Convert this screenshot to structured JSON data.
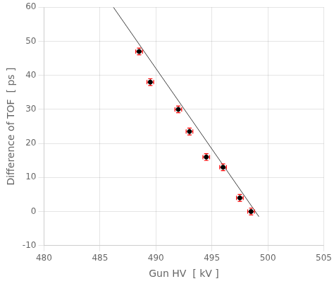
{
  "chart_data": {
    "type": "scatter",
    "xlabel": "Gun HV  [ kV ]",
    "ylabel": "Difference of TOF  [ ps ]",
    "xlim": [
      480,
      505
    ],
    "ylim": [
      -10,
      60
    ],
    "xticks": [
      480,
      485,
      490,
      495,
      500,
      505
    ],
    "yticks": [
      -10,
      0,
      10,
      20,
      30,
      40,
      50,
      60
    ],
    "grid": true,
    "series": [
      {
        "type": "line",
        "color": "#404040",
        "x": [
          486.2,
          499.2
        ],
        "values": [
          60.0,
          -1.5
        ]
      },
      {
        "type": "scatter",
        "marker": "circle",
        "color": "black",
        "x": [
          488.5,
          489.5,
          492.0,
          493.0,
          494.5,
          496.0,
          497.5,
          498.5
        ],
        "values": [
          47.0,
          38.0,
          30.0,
          23.5,
          16.0,
          13.0,
          4.0,
          0.0
        ],
        "xerr": [
          0.3,
          0.3,
          0.3,
          0.3,
          0.3,
          0.3,
          0.3,
          0.3
        ],
        "yerr": [
          1.0,
          1.0,
          1.0,
          1.0,
          1.0,
          1.0,
          1.0,
          1.0
        ],
        "errorbar_color": "red"
      }
    ]
  }
}
